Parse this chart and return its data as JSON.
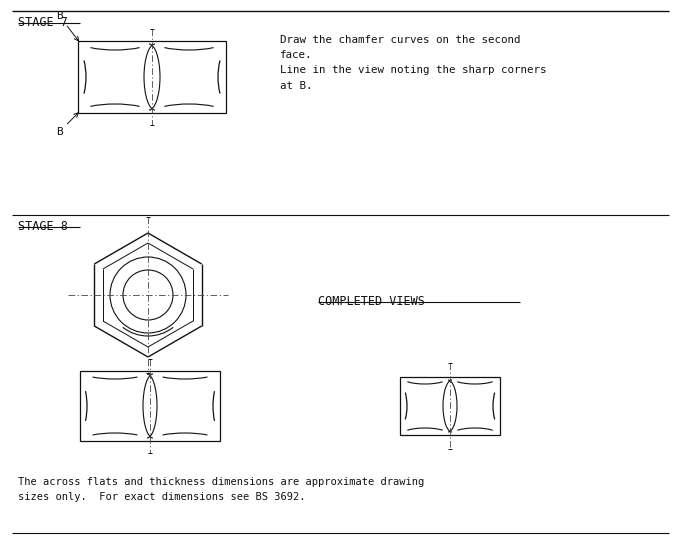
{
  "line_color": "#111111",
  "stage7_label": "STAGE 7",
  "stage8_label": "STAGE 8",
  "completed_views_label": "COMPLETED VIEWS",
  "text1": "Draw the chamfer curves on the second\nface.\nLine in the view noting the sharp corners\nat B.",
  "footer": "The across flats and thickness dimensions are approximate drawing\nsizes only.  For exact dimensions see BS 3692."
}
